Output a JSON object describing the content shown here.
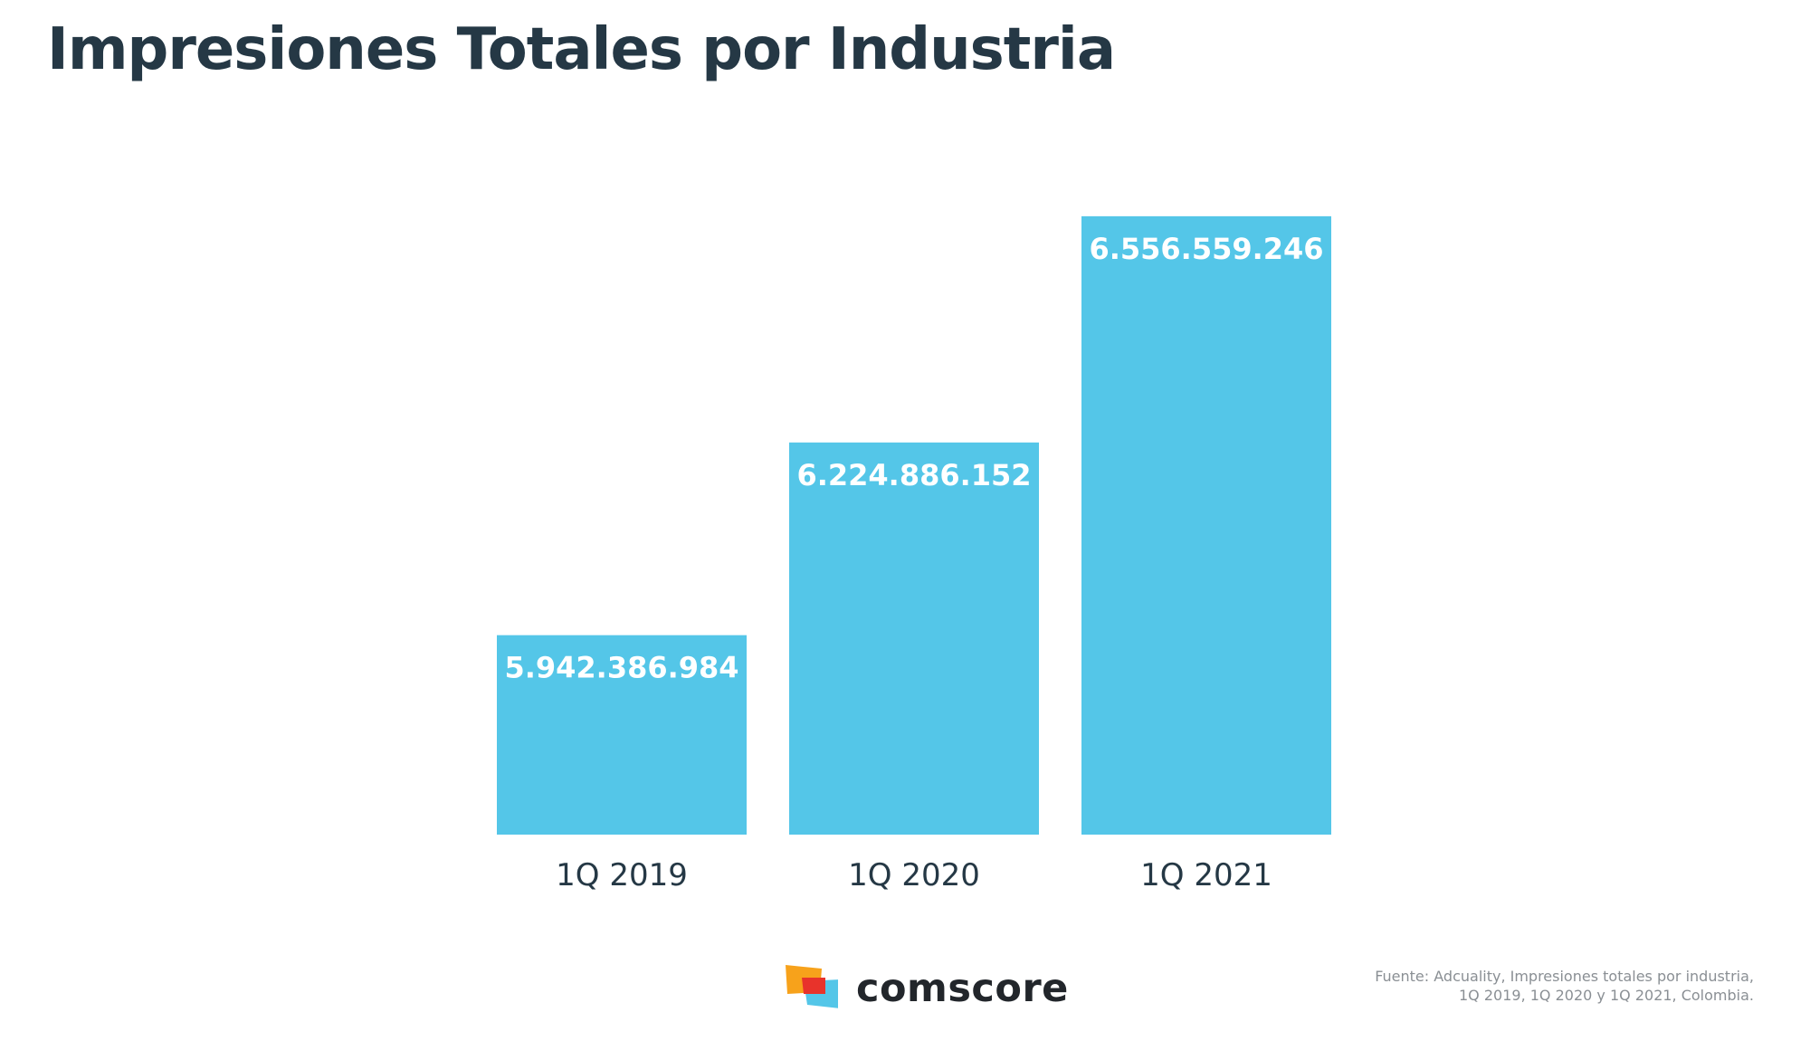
{
  "title": "Impresiones Totales por Industria",
  "chart_data": {
    "type": "bar",
    "title": "Impresiones Totales por Industria",
    "categories": [
      "1Q 2019",
      "1Q 2020",
      "1Q 2021"
    ],
    "values": [
      5942386984,
      6224886152,
      6556559246
    ],
    "value_labels": [
      "5.942.386.984",
      "6.224.886.152",
      "6.556.559.246"
    ],
    "ylim": [
      5650000000,
      6640000000
    ],
    "grid": false,
    "legend": "none",
    "bar_color": "#54C6E8",
    "label_color": "#FFFFFF",
    "category_label_color": "#253845"
  },
  "brand": {
    "name": "comscore",
    "colors": [
      "#F7A21B",
      "#E8332B",
      "#54C6E8"
    ]
  },
  "source": {
    "line1": "Fuente: Adcuality, Impresiones totales por industria,",
    "line2": "1Q 2019, 1Q 2020 y 1Q 2021, Colombia."
  },
  "colors": {
    "title": "#253845",
    "source": "#8A8F94",
    "background": "#FFFFFF"
  }
}
